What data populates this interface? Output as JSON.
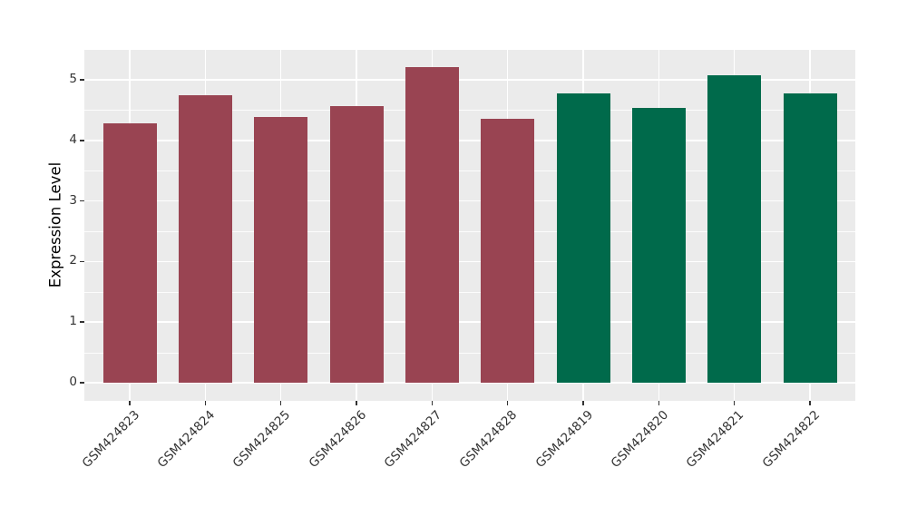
{
  "figure": {
    "background": "#FFFFFF"
  },
  "chart_data": {
    "type": "bar",
    "title": "",
    "xlabel": "",
    "ylabel": "Expression Level",
    "categories": [
      "GSM424823",
      "GSM424824",
      "GSM424825",
      "GSM424826",
      "GSM424827",
      "GSM424828",
      "GSM424819",
      "GSM424820",
      "GSM424821",
      "GSM424822"
    ],
    "values": [
      4.28,
      4.75,
      4.38,
      4.57,
      5.21,
      4.36,
      4.77,
      4.53,
      5.07,
      4.77
    ],
    "bar_colors": [
      "#994452",
      "#994452",
      "#994452",
      "#994452",
      "#994452",
      "#994452",
      "#006A4B",
      "#006A4B",
      "#006A4B",
      "#006A4B"
    ],
    "yticks": [
      0,
      1,
      2,
      3,
      4,
      5
    ],
    "ylim": [
      0,
      5.5
    ],
    "grid": "major-and-minor-horizontal, major-vertical-at-categories",
    "legend": "none",
    "panel_bg": "#EBEBEB",
    "grid_color": "#FFFFFF",
    "axis_text_color": "#333333",
    "tick_color": "#333333"
  }
}
